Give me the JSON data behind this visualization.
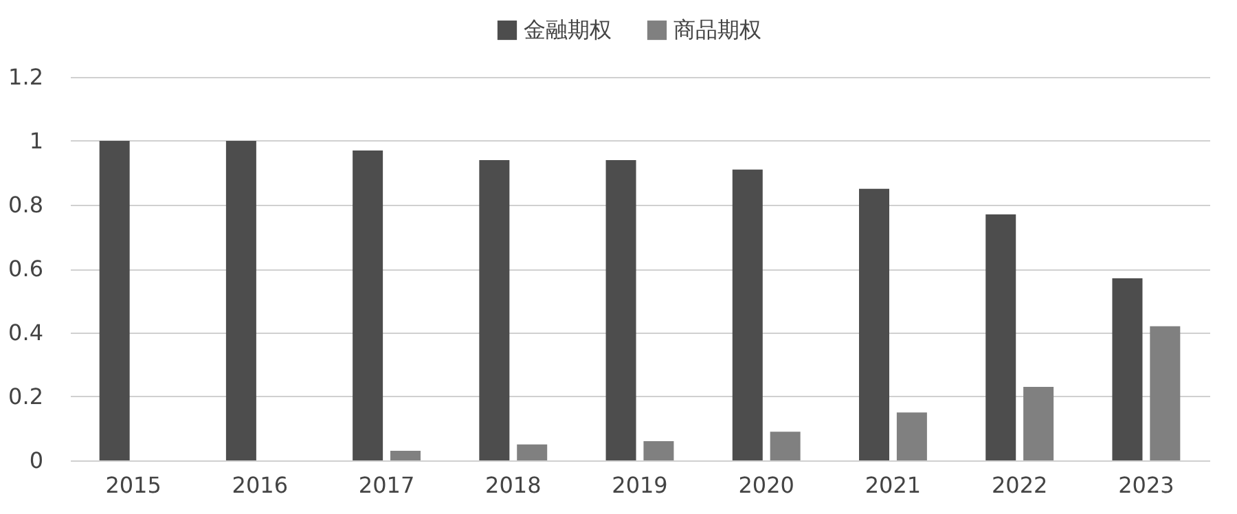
{
  "chart_data": {
    "type": "bar",
    "categories": [
      "2015",
      "2016",
      "2017",
      "2018",
      "2019",
      "2020",
      "2021",
      "2022",
      "2023"
    ],
    "series": [
      {
        "name": "金融期权",
        "color": "#4d4d4d",
        "values": [
          1.0,
          1.0,
          0.97,
          0.94,
          0.94,
          0.91,
          0.85,
          0.77,
          0.57
        ]
      },
      {
        "name": "商品期权",
        "color": "#808080",
        "values": [
          0,
          0,
          0.03,
          0.05,
          0.06,
          0.09,
          0.15,
          0.23,
          0.42
        ]
      }
    ],
    "ylim": [
      0,
      1.2
    ],
    "yticks": [
      0,
      0.2,
      0.4,
      0.6,
      0.8,
      1,
      1.2
    ],
    "grid": "y",
    "legend": "top"
  }
}
